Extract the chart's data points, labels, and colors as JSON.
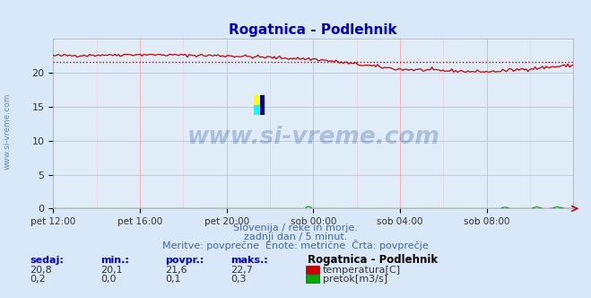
{
  "title": "Rogatnica - Podlehnik",
  "background_color": "#d8e8f8",
  "plot_bg_color": "#e0ecf8",
  "grid_color": "#ffaaaa",
  "xlabel_ticks": [
    "pet 12:00",
    "pet 16:00",
    "pet 20:00",
    "sob 00:00",
    "sob 04:00",
    "sob 08:00"
  ],
  "ylim": [
    0,
    25
  ],
  "yticks": [
    0,
    5,
    10,
    15,
    20
  ],
  "temp_avg": 21.6,
  "temp_min": 20.1,
  "temp_max": 22.7,
  "temp_current": 20.8,
  "flow_avg": 0.1,
  "flow_min": 0.0,
  "flow_max": 0.3,
  "flow_current": 0.2,
  "temp_color": "#cc0000",
  "flow_color": "#00aa00",
  "avg_line_color": "#cc0000",
  "watermark_text": "www.si-vreme.com",
  "footer_line1": "Slovenija / reke in morje.",
  "footer_line2": "zadnji dan / 5 minut.",
  "footer_line3": "Meritve: povprečne  Enote: metrične  Črta: povprečje",
  "legend_title": "Rogatnica - Podlehnik",
  "label_sedaj": "sedaj:",
  "label_min": "min.:",
  "label_povpr": "povpr.:",
  "label_maks": "maks.:",
  "label_temp": "temperatura[C]",
  "label_flow": "pretok[m3/s]",
  "num_points": 288
}
